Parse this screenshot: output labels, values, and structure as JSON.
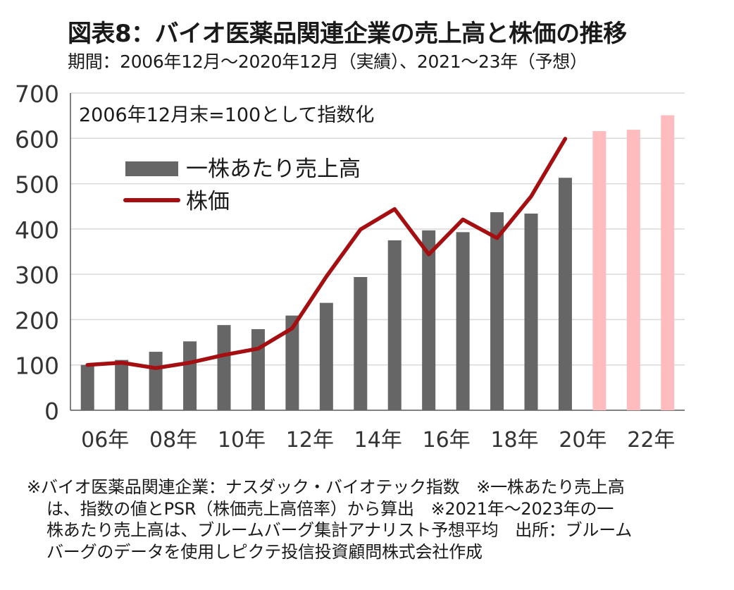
{
  "title": "図表8：バイオ医薬品関連企業の売上高と株価の推移",
  "subtitle": "期間：2006年12月～2020年12月（実績）、2021～23年（予想）",
  "colors": {
    "bar_actual": "#666666",
    "bar_forecast": "#ffbcbf",
    "line": "#a50f12",
    "grid": "#d9d9d9",
    "axis": "#595959"
  },
  "chart_data": {
    "type": "bar",
    "annotation": "2006年12月末=100として指数化",
    "ylim": [
      0,
      700
    ],
    "yticks": [
      "0",
      "100",
      "200",
      "300",
      "400",
      "500",
      "600",
      "700"
    ],
    "xtick_labels": [
      "06年",
      "08年",
      "10年",
      "12年",
      "14年",
      "16年",
      "18年",
      "20年",
      "22年"
    ],
    "grid": true,
    "legend_position": "top-left",
    "series": [
      {
        "name": "一株あたり売上高",
        "kind": "bar",
        "x": [
          2006,
          2007,
          2008,
          2009,
          2010,
          2011,
          2012,
          2013,
          2014,
          2015,
          2016,
          2017,
          2018,
          2019,
          2020,
          2021,
          2022,
          2023
        ],
        "values": [
          100,
          111,
          129,
          152,
          188,
          179,
          209,
          237,
          294,
          375,
          397,
          393,
          437,
          434,
          513,
          616,
          619,
          651
        ],
        "forecast_from": 2021
      },
      {
        "name": "株価",
        "kind": "line",
        "x": [
          2006,
          2007,
          2008,
          2009,
          2010,
          2011,
          2012,
          2013,
          2014,
          2015,
          2016,
          2017,
          2018,
          2019,
          2020
        ],
        "values": [
          100,
          105,
          93,
          105,
          122,
          136,
          181,
          295,
          399,
          444,
          344,
          421,
          380,
          472,
          599
        ]
      }
    ]
  },
  "notes": [
    "※バイオ医薬品関連企業：ナスダック・バイオテック指数　※一株あたり売上高",
    "は、指数の値とPSR（株価売上高倍率）から算出　※2021年～2023年の一",
    "株あたり売上高は、ブルームバーグ集計アナリスト予想平均　出所：ブルーム",
    "バーグのデータを使用しピクテ投信投資顧問株式会社作成"
  ]
}
